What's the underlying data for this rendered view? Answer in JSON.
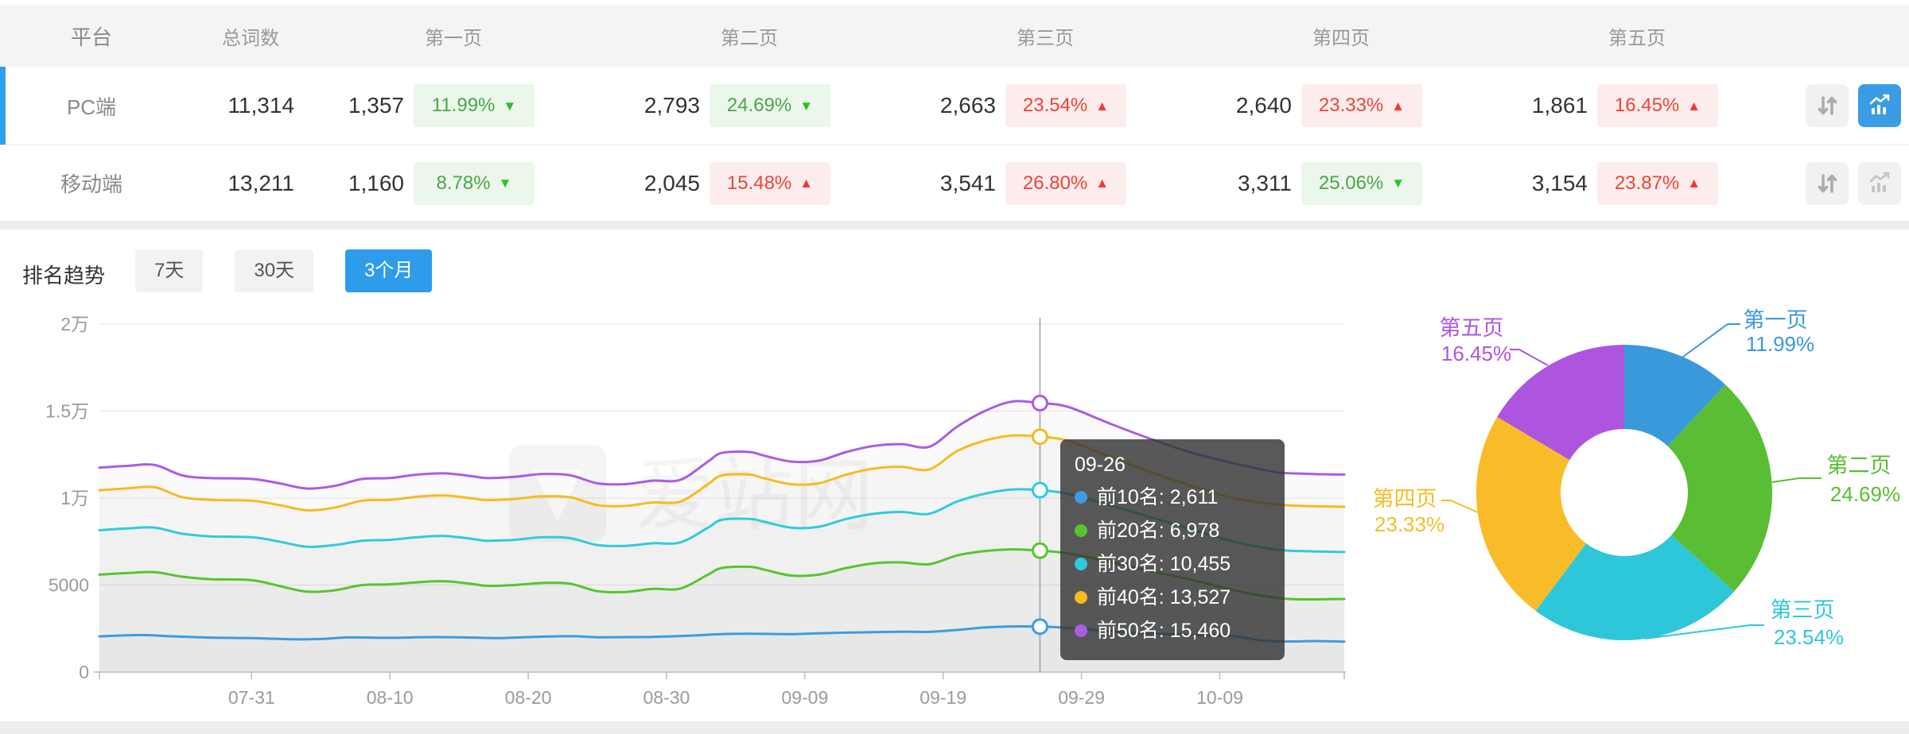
{
  "header_table": {
    "columns": [
      "平台",
      "总词数",
      "第一页",
      "第二页",
      "第三页",
      "第四页",
      "第五页"
    ],
    "rows": [
      {
        "platform": "PC端",
        "total": "11,314",
        "selected": true,
        "pages": [
          {
            "count": "1,357",
            "pct": "11.99%",
            "dir": "down",
            "tone": "green"
          },
          {
            "count": "2,793",
            "pct": "24.69%",
            "dir": "down",
            "tone": "green"
          },
          {
            "count": "2,663",
            "pct": "23.54%",
            "dir": "up",
            "tone": "red"
          },
          {
            "count": "2,640",
            "pct": "23.33%",
            "dir": "up",
            "tone": "red"
          },
          {
            "count": "1,861",
            "pct": "16.45%",
            "dir": "up",
            "tone": "red"
          }
        ],
        "chart_button_active": true
      },
      {
        "platform": "移动端",
        "total": "13,211",
        "selected": false,
        "pages": [
          {
            "count": "1,160",
            "pct": "8.78%",
            "dir": "down",
            "tone": "green"
          },
          {
            "count": "2,045",
            "pct": "15.48%",
            "dir": "up",
            "tone": "red"
          },
          {
            "count": "3,541",
            "pct": "26.80%",
            "dir": "up",
            "tone": "red"
          },
          {
            "count": "3,311",
            "pct": "25.06%",
            "dir": "down",
            "tone": "green"
          },
          {
            "count": "3,154",
            "pct": "23.87%",
            "dir": "up",
            "tone": "red"
          }
        ],
        "chart_button_active": false
      }
    ]
  },
  "trend": {
    "title": "排名趋势",
    "tabs": [
      {
        "label": "7天",
        "active": false
      },
      {
        "label": "30天",
        "active": false
      },
      {
        "label": "3个月",
        "active": true
      }
    ]
  },
  "watermark": "爱站网",
  "colors": {
    "up_red": "#EC4438",
    "down_green": "#4CA64C",
    "active_blue": "#2E9CEA",
    "row_indicator": "#2E9FEF"
  },
  "chart_data": [
    {
      "type": "line",
      "title": "排名趋势 3个月",
      "x_axis": {
        "start_date": "07-20",
        "end_date": "10-18",
        "tick_labels": [
          "07-31",
          "08-10",
          "08-20",
          "08-30",
          "09-09",
          "09-19",
          "09-29",
          "10-09"
        ],
        "tick_days": [
          11,
          21,
          31,
          41,
          51,
          61,
          71,
          81
        ],
        "range_days": [
          0,
          90
        ]
      },
      "y_axis": {
        "labels": [
          "0",
          "5000",
          "1万",
          "1.5万",
          "2万"
        ],
        "values": [
          0,
          5000,
          10000,
          15000,
          20000
        ],
        "lim": [
          0,
          20000
        ]
      },
      "series": [
        {
          "name": "前10名",
          "color": "#3D9BE2",
          "points": [
            [
              0,
              2050
            ],
            [
              3,
              2130
            ],
            [
              5,
              2060
            ],
            [
              8,
              1980
            ],
            [
              11,
              1950
            ],
            [
              14,
              1880
            ],
            [
              16,
              1900
            ],
            [
              18,
              1990
            ],
            [
              21,
              1970
            ],
            [
              24,
              2010
            ],
            [
              27,
              1980
            ],
            [
              29,
              1950
            ],
            [
              31,
              2010
            ],
            [
              34,
              2060
            ],
            [
              36,
              2000
            ],
            [
              38,
              2010
            ],
            [
              40,
              2020
            ],
            [
              43,
              2100
            ],
            [
              45,
              2180
            ],
            [
              47,
              2200
            ],
            [
              50,
              2180
            ],
            [
              52,
              2230
            ],
            [
              55,
              2280
            ],
            [
              58,
              2320
            ],
            [
              60,
              2310
            ],
            [
              62,
              2420
            ],
            [
              64,
              2560
            ],
            [
              66,
              2620
            ],
            [
              68,
              2611
            ],
            [
              70,
              2540
            ],
            [
              73,
              2350
            ],
            [
              76,
              2220
            ],
            [
              79,
              2130
            ],
            [
              82,
              2060
            ],
            [
              84,
              1820
            ],
            [
              86,
              1760
            ],
            [
              88,
              1780
            ],
            [
              90,
              1750
            ]
          ]
        },
        {
          "name": "前20名",
          "color": "#58C42E",
          "points": [
            [
              0,
              5600
            ],
            [
              2,
              5690
            ],
            [
              4,
              5740
            ],
            [
              6,
              5480
            ],
            [
              8,
              5340
            ],
            [
              11,
              5280
            ],
            [
              13,
              4950
            ],
            [
              15,
              4620
            ],
            [
              17,
              4700
            ],
            [
              19,
              5000
            ],
            [
              21,
              5040
            ],
            [
              23,
              5160
            ],
            [
              25,
              5220
            ],
            [
              27,
              5060
            ],
            [
              28,
              4960
            ],
            [
              30,
              5000
            ],
            [
              32,
              5120
            ],
            [
              34,
              5080
            ],
            [
              36,
              4650
            ],
            [
              38,
              4600
            ],
            [
              40,
              4780
            ],
            [
              42,
              4800
            ],
            [
              44,
              5600
            ],
            [
              45,
              5980
            ],
            [
              47,
              6050
            ],
            [
              48,
              5900
            ],
            [
              50,
              5550
            ],
            [
              52,
              5600
            ],
            [
              54,
              5980
            ],
            [
              56,
              6250
            ],
            [
              58,
              6300
            ],
            [
              60,
              6200
            ],
            [
              62,
              6700
            ],
            [
              64,
              6950
            ],
            [
              66,
              7050
            ],
            [
              68,
              6978
            ],
            [
              70,
              6820
            ],
            [
              73,
              6350
            ],
            [
              76,
              5800
            ],
            [
              79,
              5300
            ],
            [
              82,
              4700
            ],
            [
              85,
              4280
            ],
            [
              87,
              4180
            ],
            [
              90,
              4200
            ]
          ]
        },
        {
          "name": "前30名",
          "color": "#2FCBDD",
          "points": [
            [
              0,
              8150
            ],
            [
              2,
              8250
            ],
            [
              4,
              8300
            ],
            [
              6,
              7950
            ],
            [
              8,
              7800
            ],
            [
              11,
              7750
            ],
            [
              13,
              7500
            ],
            [
              15,
              7200
            ],
            [
              17,
              7300
            ],
            [
              19,
              7550
            ],
            [
              21,
              7600
            ],
            [
              23,
              7750
            ],
            [
              25,
              7820
            ],
            [
              27,
              7650
            ],
            [
              28,
              7550
            ],
            [
              30,
              7600
            ],
            [
              32,
              7750
            ],
            [
              34,
              7700
            ],
            [
              36,
              7300
            ],
            [
              38,
              7250
            ],
            [
              40,
              7400
            ],
            [
              42,
              7450
            ],
            [
              44,
              8300
            ],
            [
              45,
              8750
            ],
            [
              47,
              8800
            ],
            [
              48,
              8650
            ],
            [
              50,
              8300
            ],
            [
              52,
              8350
            ],
            [
              54,
              8800
            ],
            [
              56,
              9100
            ],
            [
              58,
              9200
            ],
            [
              60,
              9100
            ],
            [
              62,
              9800
            ],
            [
              64,
              10250
            ],
            [
              66,
              10500
            ],
            [
              68,
              10455
            ],
            [
              70,
              10250
            ],
            [
              73,
              9600
            ],
            [
              76,
              8900
            ],
            [
              79,
              8200
            ],
            [
              82,
              7500
            ],
            [
              85,
              7050
            ],
            [
              87,
              6950
            ],
            [
              90,
              6900
            ]
          ]
        },
        {
          "name": "前40名",
          "color": "#F6BB20",
          "points": [
            [
              0,
              10450
            ],
            [
              2,
              10560
            ],
            [
              4,
              10620
            ],
            [
              6,
              10050
            ],
            [
              8,
              9900
            ],
            [
              11,
              9850
            ],
            [
              13,
              9600
            ],
            [
              15,
              9300
            ],
            [
              17,
              9450
            ],
            [
              19,
              9850
            ],
            [
              21,
              9900
            ],
            [
              23,
              10080
            ],
            [
              25,
              10150
            ],
            [
              27,
              9980
            ],
            [
              28,
              9880
            ],
            [
              30,
              9950
            ],
            [
              32,
              10100
            ],
            [
              34,
              10050
            ],
            [
              36,
              9600
            ],
            [
              38,
              9550
            ],
            [
              40,
              9750
            ],
            [
              42,
              9800
            ],
            [
              44,
              10800
            ],
            [
              45,
              11300
            ],
            [
              47,
              11350
            ],
            [
              48,
              11150
            ],
            [
              50,
              10800
            ],
            [
              52,
              10850
            ],
            [
              54,
              11350
            ],
            [
              56,
              11700
            ],
            [
              58,
              11800
            ],
            [
              60,
              11650
            ],
            [
              62,
              12700
            ],
            [
              64,
              13300
            ],
            [
              66,
              13600
            ],
            [
              68,
              13527
            ],
            [
              70,
              13300
            ],
            [
              73,
              12400
            ],
            [
              76,
              11500
            ],
            [
              79,
              10700
            ],
            [
              82,
              10000
            ],
            [
              85,
              9650
            ],
            [
              87,
              9550
            ],
            [
              90,
              9500
            ]
          ]
        },
        {
          "name": "前50名",
          "color": "#A95DE3",
          "points": [
            [
              0,
              11750
            ],
            [
              2,
              11850
            ],
            [
              4,
              11900
            ],
            [
              6,
              11300
            ],
            [
              8,
              11150
            ],
            [
              11,
              11100
            ],
            [
              13,
              10850
            ],
            [
              15,
              10550
            ],
            [
              17,
              10700
            ],
            [
              19,
              11100
            ],
            [
              21,
              11150
            ],
            [
              23,
              11350
            ],
            [
              25,
              11420
            ],
            [
              27,
              11250
            ],
            [
              28,
              11150
            ],
            [
              30,
              11220
            ],
            [
              32,
              11380
            ],
            [
              34,
              11320
            ],
            [
              36,
              10850
            ],
            [
              38,
              10800
            ],
            [
              40,
              11000
            ],
            [
              42,
              11050
            ],
            [
              44,
              12100
            ],
            [
              45,
              12600
            ],
            [
              47,
              12650
            ],
            [
              48,
              12450
            ],
            [
              50,
              12100
            ],
            [
              52,
              12150
            ],
            [
              54,
              12650
            ],
            [
              56,
              13000
            ],
            [
              58,
              13100
            ],
            [
              60,
              12950
            ],
            [
              62,
              14100
            ],
            [
              64,
              15000
            ],
            [
              66,
              15550
            ],
            [
              68,
              15460
            ],
            [
              70,
              15250
            ],
            [
              73,
              14300
            ],
            [
              76,
              13400
            ],
            [
              79,
              12600
            ],
            [
              82,
              12000
            ],
            [
              85,
              11500
            ],
            [
              87,
              11400
            ],
            [
              90,
              11350
            ]
          ]
        }
      ],
      "hover": {
        "day": 68,
        "date": "09-26",
        "items": [
          {
            "name": "前10名",
            "value": 2611,
            "display": "2,611",
            "color": "#3D9BE2"
          },
          {
            "name": "前20名",
            "value": 6978,
            "display": "6,978",
            "color": "#58C42E"
          },
          {
            "name": "前30名",
            "value": 10455,
            "display": "10,455",
            "color": "#2FCBDD"
          },
          {
            "name": "前40名",
            "value": 13527,
            "display": "13,527",
            "color": "#F6BB20"
          },
          {
            "name": "前50名",
            "value": 15460,
            "display": "15,460",
            "color": "#A95DE3"
          }
        ]
      },
      "grid": true,
      "legend_position": "none"
    },
    {
      "type": "pie",
      "donut": true,
      "slices": [
        {
          "label": "第一页",
          "value": 11.99,
          "display": "11.99%",
          "color": "#3A99DB"
        },
        {
          "label": "第二页",
          "value": 24.69,
          "display": "24.69%",
          "color": "#59BE33"
        },
        {
          "label": "第三页",
          "value": 23.54,
          "display": "23.54%",
          "color": "#2EC7D9"
        },
        {
          "label": "第四页",
          "value": 23.33,
          "display": "23.33%",
          "color": "#F8BC29"
        },
        {
          "label": "第五页",
          "value": 16.45,
          "display": "16.45%",
          "color": "#AE55E0"
        }
      ]
    }
  ]
}
